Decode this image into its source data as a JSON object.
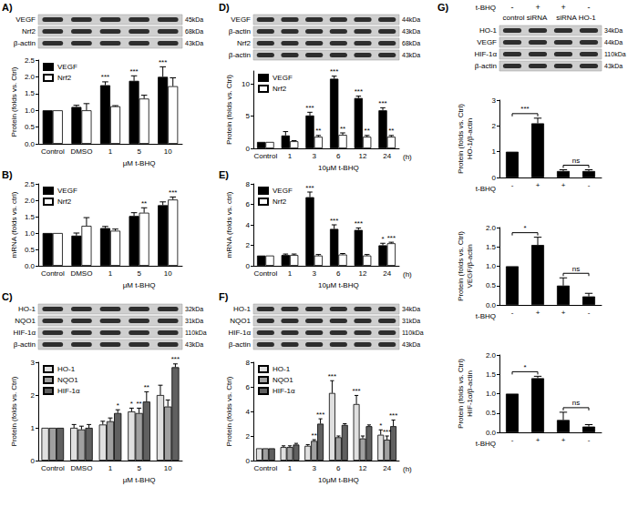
{
  "chart_data": [
    {
      "type": "bar",
      "title": "A)",
      "ylabel": "Protein (folds vs. Ctrl)",
      "xlabel": "μM t-BHQ",
      "categories": [
        "Control",
        "DMSO",
        "1",
        "5",
        "10"
      ],
      "series": [
        {
          "name": "VEGF",
          "color": "#000000",
          "values": [
            1,
            1.1,
            1.75,
            1.88,
            2.0
          ],
          "errors": [
            0,
            0.05,
            0.1,
            0.15,
            0.3
          ],
          "significance": [
            null,
            null,
            "***",
            "***",
            "***"
          ]
        },
        {
          "name": "Nrf2",
          "color": "#ffffff",
          "values": [
            1,
            1.0,
            1.12,
            1.35,
            1.72
          ],
          "errors": [
            0,
            0.2,
            0.02,
            0.1,
            0.25
          ]
        }
      ],
      "ylim": [
        0,
        2.5
      ],
      "yticks": [
        {
          "value": 0,
          "label": "0.0"
        },
        {
          "value": 0.5,
          "label": "0.5"
        },
        {
          "value": 1,
          "label": "1.0"
        },
        {
          "value": 1.5,
          "label": "1.5"
        },
        {
          "value": 2,
          "label": "2.0"
        },
        {
          "value": 2.5,
          "label": "2.5"
        }
      ],
      "grid": false,
      "legend": "upper left",
      "blot": {
        "rows": [
          {
            "label": "VEGF",
            "size": "45kDa"
          },
          {
            "label": "Nrf2",
            "size": "68kDa"
          },
          {
            "label": "β-actin",
            "size": "43kDa"
          }
        ]
      }
    },
    {
      "type": "bar",
      "title": "B)",
      "ylabel": "mRNA (folds vs. ctrl)",
      "xlabel": "μM t-BHQ",
      "categories": [
        "Control",
        "DMSO",
        "1",
        "5",
        "10"
      ],
      "series": [
        {
          "name": "VEGF",
          "color": "#000000",
          "values": [
            1,
            0.92,
            1.15,
            1.52,
            1.85
          ],
          "errors": [
            0,
            0.08,
            0.05,
            0.1,
            0.1
          ]
        },
        {
          "name": "Nrf2",
          "color": "#ffffff",
          "values": [
            1,
            1.22,
            1.07,
            1.62,
            2.02
          ],
          "errors": [
            0,
            0.25,
            0.05,
            0.15,
            0.08
          ],
          "significance": [
            null,
            null,
            null,
            "**",
            "***"
          ]
        }
      ],
      "ylim": [
        0,
        2.5
      ],
      "yticks": [
        {
          "value": 0,
          "label": "0.0"
        },
        {
          "value": 0.5,
          "label": "0.5"
        },
        {
          "value": 1,
          "label": "1.0"
        },
        {
          "value": 1.5,
          "label": "1.5"
        },
        {
          "value": 2,
          "label": "2.0"
        },
        {
          "value": 2.5,
          "label": "2.5"
        }
      ],
      "grid": false,
      "legend": "upper left"
    },
    {
      "type": "bar",
      "title": "C)",
      "ylabel": "Protein (folds vs. Ctrl)",
      "xlabel": "μM t-BHQ",
      "categories": [
        "Control",
        "DMSO",
        "1",
        "5",
        "10"
      ],
      "series": [
        {
          "name": "HO-1",
          "color": "#e0e0e0",
          "values": [
            1,
            1.0,
            1.1,
            1.5,
            2.0
          ],
          "errors": [
            0,
            0.1,
            0.1,
            0.1,
            0.3
          ],
          "significance": [
            null,
            null,
            null,
            "*",
            null
          ]
        },
        {
          "name": "NQO1",
          "color": "#a0a0a0",
          "values": [
            1,
            0.95,
            1.2,
            1.45,
            1.65
          ],
          "errors": [
            0,
            0.1,
            0.1,
            0.15,
            0.2
          ],
          "significance": [
            null,
            null,
            null,
            "**",
            null
          ]
        },
        {
          "name": "HIF-1α",
          "color": "#606060",
          "values": [
            1,
            1.0,
            1.45,
            1.8,
            2.85
          ],
          "errors": [
            0,
            0.1,
            0.1,
            0.3,
            0.1
          ],
          "significance": [
            null,
            null,
            "*",
            "**",
            "***"
          ]
        }
      ],
      "ylim": [
        0,
        3
      ],
      "yticks": [
        0,
        1,
        2,
        3
      ],
      "grid": false,
      "legend": "upper left",
      "blot": {
        "rows": [
          {
            "label": "HO-1",
            "size": "32kDa"
          },
          {
            "label": "NQO1",
            "size": "31kDa"
          },
          {
            "label": "HIF-1α",
            "size": "110kDa"
          },
          {
            "label": "β-actin",
            "size": "43kDa"
          }
        ]
      }
    },
    {
      "type": "bar",
      "title": "D)",
      "ylabel": "Protein (folds vs. Ctrl)",
      "xlabel": "10μM t-BHQ",
      "annotations": [
        "(h)"
      ],
      "categories": [
        "Control",
        "1",
        "3",
        "6",
        "12",
        "24"
      ],
      "series": [
        {
          "name": "VEGF",
          "color": "#000000",
          "values": [
            1,
            2.0,
            5.1,
            10.8,
            7.8,
            5.9
          ],
          "errors": [
            0,
            0.6,
            0.5,
            0.4,
            0.3,
            0.4
          ],
          "significance": [
            null,
            null,
            "***",
            "***",
            "***",
            "***"
          ]
        },
        {
          "name": "Nrf2",
          "color": "#ffffff",
          "values": [
            1,
            1.1,
            1.8,
            2.1,
            1.8,
            1.8
          ],
          "errors": [
            0,
            0.1,
            0.2,
            0.3,
            0.2,
            0.2
          ],
          "significance": [
            null,
            null,
            "**",
            "**",
            "**",
            "**"
          ]
        }
      ],
      "ylim": [
        0,
        12
      ],
      "yticks": [
        0,
        5,
        10
      ],
      "grid": false,
      "legend": "upper left",
      "blot": {
        "rows": [
          {
            "label": "VEGF",
            "size": "44kDa"
          },
          {
            "label": "β-actin",
            "size": "43kDa"
          },
          {
            "label": "Nrf2",
            "size": "68kDa"
          },
          {
            "label": "β-actin",
            "size": "43kDa"
          }
        ]
      }
    },
    {
      "type": "bar",
      "title": "E)",
      "ylabel": "mRNA (folds vs. ctrl)",
      "xlabel": "10μM t-BHQ",
      "annotations": [
        "(h)"
      ],
      "categories": [
        "Control",
        "1",
        "3",
        "6",
        "12",
        "24"
      ],
      "series": [
        {
          "name": "VEGF",
          "color": "#000000",
          "values": [
            1,
            1.05,
            6.7,
            3.6,
            3.5,
            2.0
          ],
          "errors": [
            0,
            0.1,
            0.5,
            0.4,
            0.2,
            0.2
          ],
          "significance": [
            null,
            null,
            "***",
            "***",
            "***",
            "*"
          ]
        },
        {
          "name": "Nrf2",
          "color": "#ffffff",
          "values": [
            1,
            1.05,
            1.0,
            1.1,
            1.0,
            2.2
          ],
          "errors": [
            0,
            0.1,
            0.1,
            0.1,
            0.1,
            0.1
          ],
          "significance": [
            null,
            null,
            null,
            null,
            null,
            "***"
          ]
        }
      ],
      "ylim": [
        0,
        8
      ],
      "yticks": [
        0,
        2,
        4,
        6,
        8
      ],
      "grid": false,
      "legend": "upper left"
    },
    {
      "type": "bar",
      "title": "F)",
      "ylabel": "Protein (folds vs. Ctrl)",
      "xlabel": "10μM t-BHQ",
      "annotations": [
        "(h)"
      ],
      "categories": [
        "Control",
        "1",
        "3",
        "6",
        "12",
        "24"
      ],
      "series": [
        {
          "name": "HO-1",
          "color": "#e0e0e0",
          "values": [
            1,
            1.1,
            1.2,
            5.5,
            4.6,
            2.1
          ],
          "errors": [
            0,
            0.1,
            0.1,
            1.0,
            0.7,
            0.4
          ],
          "significance": [
            null,
            null,
            null,
            "***",
            "***",
            "*"
          ]
        },
        {
          "name": "NQO1",
          "color": "#a0a0a0",
          "values": [
            1,
            1.1,
            1.6,
            1.9,
            1.8,
            1.7
          ],
          "errors": [
            0,
            0.1,
            0.1,
            0.1,
            0.2,
            0.3
          ],
          "significance": [
            null,
            null,
            "**",
            null,
            null,
            "***"
          ]
        },
        {
          "name": "HIF-1α",
          "color": "#606060",
          "values": [
            1,
            1.3,
            3.0,
            2.9,
            2.8,
            2.8
          ],
          "errors": [
            0,
            0.1,
            0.4,
            0.1,
            0.1,
            0.5
          ],
          "significance": [
            null,
            null,
            "***",
            null,
            null,
            "***"
          ]
        }
      ],
      "ylim": [
        0,
        8
      ],
      "yticks": [
        0,
        2,
        4,
        6,
        8
      ],
      "grid": false,
      "legend": "upper left",
      "blot": {
        "rows": [
          {
            "label": "HO-1",
            "size": "34kDa"
          },
          {
            "label": "NQO1",
            "size": "31kDa"
          },
          {
            "label": "HIF-1α",
            "size": "110kDa"
          },
          {
            "label": "β-actin",
            "size": "43kDa"
          }
        ]
      }
    },
    {
      "type": "bar",
      "title": "G)",
      "ylabel": "Protein (folds vs. Ctrl)\nHO-1/β-actin",
      "xlabel": "t-BHQ",
      "categories": [
        "-",
        "+",
        "+",
        "-"
      ],
      "series": [
        {
          "color": "#000000",
          "values": [
            1,
            2.1,
            0.25,
            0.25
          ],
          "errors": [
            0,
            0.2,
            0.05,
            0.05
          ]
        }
      ],
      "comparisons": [
        {
          "between": [
            0,
            1
          ],
          "label": "***"
        },
        {
          "between": [
            2,
            3
          ],
          "label": "ns"
        }
      ],
      "ylim": [
        0,
        3
      ],
      "yticks": [
        0,
        1,
        2,
        3
      ],
      "grid": false,
      "blot": {
        "header": {
          "label": "t-BHQ",
          "lanes": [
            "-",
            "+",
            "+",
            "-"
          ],
          "groups": [
            "control siRNA",
            "siRNA HO-1"
          ]
        },
        "rows": [
          {
            "label": "HO-1",
            "size": "34kDa"
          },
          {
            "label": "VEGF",
            "size": "44kDa"
          },
          {
            "label": "HIF-1α",
            "size": "110kDa"
          },
          {
            "label": "β-actin",
            "size": "43kDa"
          }
        ]
      }
    },
    {
      "type": "bar",
      "ylabel": "Protein (folds vs. Ctrl)\nVEGF/β-actin",
      "xlabel": "t-BHQ",
      "categories": [
        "-",
        "+",
        "+",
        "-"
      ],
      "series": [
        {
          "color": "#000000",
          "values": [
            1,
            1.55,
            0.5,
            0.22
          ],
          "errors": [
            0,
            0.2,
            0.2,
            0.08
          ]
        }
      ],
      "comparisons": [
        {
          "between": [
            0,
            1
          ],
          "label": "*"
        },
        {
          "between": [
            2,
            3
          ],
          "label": "ns"
        }
      ],
      "ylim": [
        0,
        2
      ],
      "yticks": [
        {
          "value": 0,
          "label": "0.0"
        },
        {
          "value": 0.5,
          "label": "0.5"
        },
        {
          "value": 1,
          "label": "1.0"
        },
        {
          "value": 1.5,
          "label": "1.5"
        },
        {
          "value": 2,
          "label": "2.0"
        }
      ],
      "grid": false
    },
    {
      "type": "bar",
      "ylabel": "Protein (folds vs. Ctrl)\nHIF-1α/β-actin",
      "xlabel": "t-BHQ",
      "categories": [
        "-",
        "+",
        "+",
        "-"
      ],
      "series": [
        {
          "color": "#000000",
          "values": [
            1,
            1.4,
            0.32,
            0.15
          ],
          "errors": [
            0,
            0.05,
            0.2,
            0.05
          ]
        }
      ],
      "comparisons": [
        {
          "between": [
            0,
            1
          ],
          "label": "*"
        },
        {
          "between": [
            2,
            3
          ],
          "label": "ns"
        }
      ],
      "ylim": [
        0,
        2
      ],
      "yticks": [
        {
          "value": 0,
          "label": "0.0"
        },
        {
          "value": 0.5,
          "label": "0.5"
        },
        {
          "value": 1,
          "label": "1.0"
        },
        {
          "value": 1.5,
          "label": "1.5"
        },
        {
          "value": 2,
          "label": "2.0"
        }
      ],
      "grid": false
    }
  ]
}
